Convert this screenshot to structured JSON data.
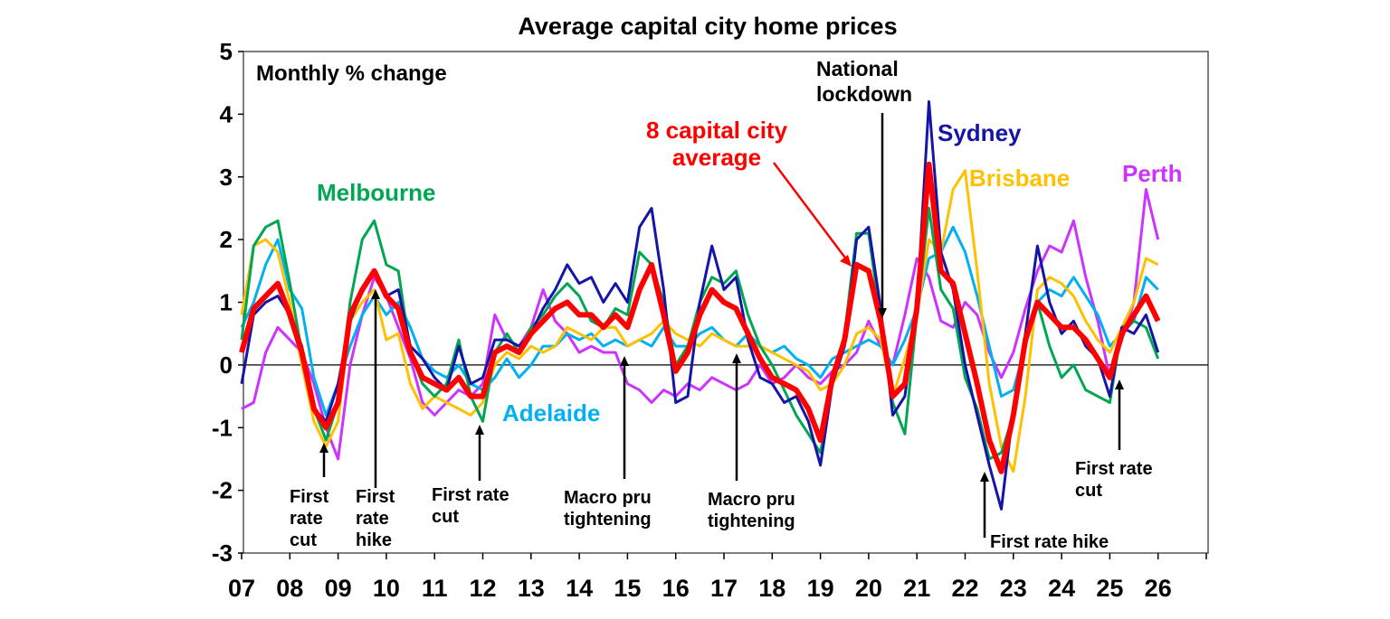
{
  "chart_data": {
    "type": "line",
    "title": "Average capital city home prices",
    "subtitle": "Monthly % change",
    "ylim": [
      -3,
      5
    ],
    "yticks": [
      "5",
      "4",
      "3",
      "2",
      "1",
      "0",
      "-1",
      "-2",
      "-3"
    ],
    "xticks": [
      "07",
      "08",
      "09",
      "10",
      "11",
      "12",
      "13",
      "14",
      "15",
      "16",
      "17",
      "18",
      "19",
      "20",
      "21",
      "22",
      "23",
      "24",
      "25",
      "26"
    ],
    "x_start": 2007.0,
    "x_step": 0.25,
    "grid": false,
    "series": [
      {
        "name": "Perth",
        "color": "#CC33FF",
        "width": 3,
        "values": [
          -0.7,
          -0.6,
          0.2,
          0.6,
          0.4,
          0.2,
          -0.3,
          -1.0,
          -1.5,
          0.0,
          0.8,
          1.4,
          1.1,
          0.6,
          0.1,
          -0.6,
          -0.8,
          -0.6,
          -0.4,
          -0.5,
          -0.3,
          0.8,
          0.4,
          0.3,
          0.6,
          1.2,
          0.7,
          0.5,
          0.2,
          0.3,
          0.2,
          0.2,
          -0.3,
          -0.4,
          -0.6,
          -0.4,
          -0.5,
          -0.3,
          -0.4,
          -0.2,
          -0.3,
          -0.4,
          -0.3,
          0.0,
          -0.3,
          -0.2,
          0.0,
          -0.2,
          -0.3,
          -0.1,
          0.0,
          0.2,
          0.7,
          0.3,
          0.0,
          0.8,
          1.7,
          1.4,
          0.7,
          0.6,
          1.0,
          0.8,
          0.2,
          -0.2,
          0.2,
          0.9,
          1.5,
          1.9,
          1.8,
          2.3,
          1.4,
          0.7,
          -0.2,
          0.4,
          1.0,
          2.8,
          2.0
        ]
      },
      {
        "name": "Adelaide",
        "color": "#00B0F0",
        "width": 3,
        "values": [
          0.6,
          1.0,
          1.6,
          2.0,
          1.2,
          0.9,
          -0.2,
          -0.8,
          -0.3,
          0.3,
          0.8,
          1.1,
          0.8,
          1.0,
          0.6,
          0.1,
          -0.1,
          -0.2,
          0.0,
          -0.3,
          -0.4,
          -0.2,
          0.1,
          -0.2,
          0.0,
          0.3,
          0.3,
          0.5,
          0.4,
          0.5,
          0.3,
          0.4,
          0.3,
          0.4,
          0.3,
          0.6,
          0.3,
          0.3,
          0.5,
          0.6,
          0.4,
          0.3,
          0.5,
          0.3,
          0.2,
          0.3,
          0.1,
          0.0,
          -0.2,
          0.1,
          0.2,
          0.3,
          0.4,
          0.3,
          0.0,
          0.4,
          0.9,
          1.7,
          1.8,
          2.2,
          1.8,
          1.1,
          0.3,
          -0.5,
          -0.4,
          0.3,
          1.0,
          1.2,
          1.1,
          1.4,
          1.1,
          0.8,
          0.3,
          0.5,
          0.7,
          1.4,
          1.2
        ]
      },
      {
        "name": "Brisbane",
        "color": "#FFC000",
        "width": 3,
        "values": [
          0.8,
          1.9,
          2.0,
          1.8,
          1.0,
          0.0,
          -0.9,
          -1.3,
          -0.9,
          0.7,
          1.0,
          1.2,
          0.4,
          0.5,
          -0.3,
          -0.7,
          -0.5,
          -0.6,
          -0.7,
          -0.8,
          -0.6,
          0.0,
          0.2,
          0.1,
          0.3,
          0.2,
          0.3,
          0.6,
          0.5,
          0.4,
          0.6,
          0.6,
          0.3,
          0.4,
          0.5,
          0.7,
          0.5,
          0.4,
          0.3,
          0.5,
          0.4,
          0.3,
          0.3,
          0.3,
          0.2,
          0.1,
          0.0,
          -0.1,
          -0.4,
          -0.3,
          0.0,
          0.5,
          0.6,
          0.4,
          -0.5,
          0.1,
          0.8,
          2.0,
          1.8,
          2.8,
          3.1,
          1.5,
          -0.3,
          -1.3,
          -1.7,
          -0.5,
          1.2,
          1.4,
          1.3,
          1.1,
          0.7,
          0.4,
          0.2,
          0.6,
          1.0,
          1.7,
          1.6
        ]
      },
      {
        "name": "Melbourne",
        "color": "#00A651",
        "width": 3,
        "values": [
          0.4,
          1.9,
          2.2,
          2.3,
          1.3,
          0.2,
          -0.7,
          -1.2,
          -0.6,
          1.0,
          2.0,
          2.3,
          1.6,
          1.5,
          0.2,
          -0.3,
          -0.5,
          -0.3,
          0.4,
          -0.5,
          -0.9,
          0.2,
          0.5,
          0.2,
          0.6,
          0.8,
          1.1,
          1.3,
          1.1,
          0.7,
          0.6,
          0.9,
          0.8,
          1.8,
          1.6,
          1.0,
          0.0,
          0.3,
          1.0,
          1.4,
          1.3,
          1.5,
          0.8,
          0.3,
          0.0,
          -0.4,
          -0.8,
          -1.1,
          -1.4,
          -0.3,
          0.5,
          2.1,
          2.1,
          0.7,
          -0.6,
          -1.1,
          0.8,
          2.5,
          1.2,
          0.9,
          -0.2,
          -0.7,
          -1.5,
          -1.4,
          -0.8,
          0.5,
          1.0,
          0.3,
          -0.2,
          0.0,
          -0.4,
          -0.5,
          -0.6,
          0.6,
          0.7,
          0.6,
          0.1
        ]
      },
      {
        "name": "Sydney",
        "color": "#1414A8",
        "width": 3,
        "values": [
          -0.3,
          0.8,
          1.0,
          1.1,
          0.8,
          0.3,
          -0.7,
          -0.9,
          -0.3,
          0.7,
          1.2,
          1.5,
          1.1,
          1.2,
          0.3,
          0.1,
          -0.2,
          -0.4,
          0.3,
          -0.3,
          -0.2,
          0.4,
          0.4,
          0.3,
          0.5,
          0.9,
          1.2,
          1.6,
          1.3,
          1.4,
          1.0,
          1.3,
          1.0,
          2.2,
          2.5,
          1.2,
          -0.6,
          -0.5,
          1.0,
          1.9,
          1.2,
          1.4,
          0.4,
          -0.2,
          -0.3,
          -0.6,
          -0.5,
          -0.9,
          -1.6,
          -0.3,
          0.3,
          2.0,
          2.2,
          0.9,
          -0.8,
          -0.5,
          0.9,
          4.2,
          1.8,
          1.2,
          0.0,
          -0.8,
          -1.6,
          -2.3,
          -0.7,
          0.5,
          1.9,
          1.0,
          0.5,
          0.7,
          0.3,
          0.1,
          -0.5,
          0.6,
          0.5,
          0.8,
          0.2
        ]
      },
      {
        "name": "8 capital city average",
        "color": "#FF0000",
        "width": 6,
        "values": [
          0.2,
          0.9,
          1.1,
          1.3,
          0.8,
          0.2,
          -0.7,
          -1.0,
          -0.6,
          0.8,
          1.2,
          1.5,
          1.1,
          0.9,
          0.2,
          -0.2,
          -0.3,
          -0.4,
          -0.2,
          -0.5,
          -0.5,
          0.2,
          0.3,
          0.2,
          0.5,
          0.7,
          0.9,
          1.0,
          0.8,
          0.8,
          0.6,
          0.8,
          0.6,
          1.2,
          1.6,
          0.8,
          -0.1,
          0.2,
          0.8,
          1.2,
          1.0,
          0.9,
          0.5,
          0.1,
          -0.2,
          -0.3,
          -0.4,
          -0.7,
          -1.2,
          -0.2,
          0.4,
          1.6,
          1.5,
          0.7,
          -0.5,
          -0.3,
          0.9,
          3.2,
          1.5,
          1.3,
          0.5,
          -0.3,
          -1.2,
          -1.7,
          -0.8,
          0.4,
          1.0,
          0.8,
          0.6,
          0.6,
          0.4,
          0.1,
          -0.2,
          0.5,
          0.8,
          1.1,
          0.7
        ]
      }
    ],
    "series_labels": {
      "melbourne": "Melbourne",
      "adelaide": "Adelaide",
      "sydney": "Sydney",
      "brisbane": "Brisbane",
      "perth": "Perth",
      "average_line1": "8 capital city",
      "average_line2": "average"
    },
    "annotations": [
      {
        "lines": [
          "First",
          "rate",
          "cut"
        ]
      },
      {
        "lines": [
          "First",
          "rate",
          "hike"
        ]
      },
      {
        "lines": [
          "First rate",
          "cut"
        ]
      },
      {
        "lines": [
          "Macro pru",
          "tightening"
        ]
      },
      {
        "lines": [
          "Macro pru",
          "tightening"
        ]
      },
      {
        "lines": [
          "National",
          "lockdown"
        ]
      },
      {
        "lines": [
          "First rate hike"
        ]
      },
      {
        "lines": [
          "First rate",
          "cut"
        ]
      }
    ]
  }
}
